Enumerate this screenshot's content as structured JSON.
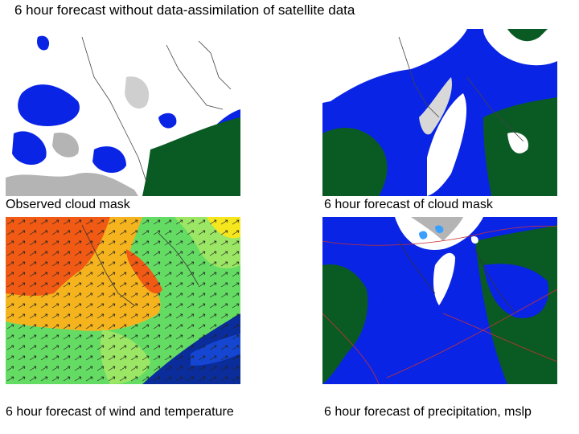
{
  "slide": {
    "title": "6 hour forecast without data-assimilation of satellite data",
    "captions": {
      "top_left": "Observed cloud mask",
      "top_right": "6 hour forecast of cloud mask",
      "bottom_left": "6 hour forecast of wind and temperature",
      "bottom_right": "6 hour forecast of precipitation, mslp"
    }
  },
  "colors": {
    "sea": "#0a24e6",
    "land": "#0a5a23",
    "cloud": "#ffffff",
    "cloud_edge": "#b4b4b4",
    "warm": "#f05a14",
    "mid": "#f5b41e",
    "cool": "#64dc64",
    "cold_sea": "#0a2d9b",
    "isobar": "#c83232"
  }
}
